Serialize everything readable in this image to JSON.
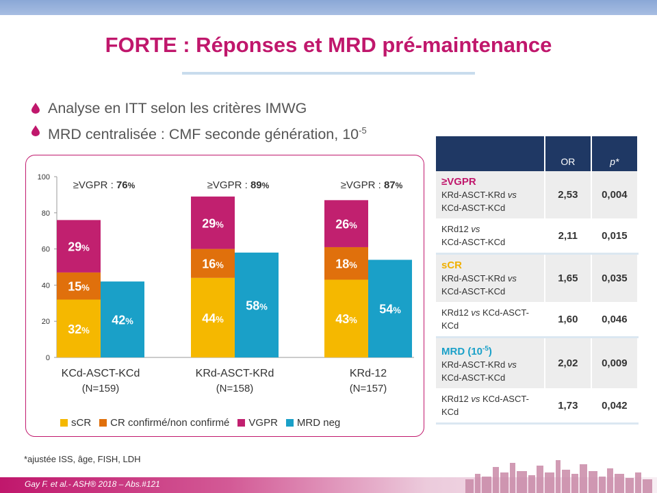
{
  "title": "FORTE : Réponses et MRD pré-maintenance",
  "bullets": [
    {
      "text": "Analyse en ITT selon les critères IMWG",
      "sup": ""
    },
    {
      "text": "MRD centralisée : CMF seconde génération, 10",
      "sup": "-5"
    }
  ],
  "colors": {
    "sCR": "#f5b800",
    "CR": "#e0700c",
    "VGPR": "#c1206f",
    "MRD": "#1aa0c8",
    "title": "#c0176c",
    "table_head": "#1f3864"
  },
  "chart_data": {
    "type": "bar",
    "stacked_and_grouped": true,
    "ylim": [
      0,
      100
    ],
    "yticks": [
      "0",
      "20",
      "40",
      "60",
      "80",
      "100"
    ],
    "groups": [
      {
        "label": "KCd-ASCT-KCd",
        "n": "(N=159)",
        "vgpr_label": "≥VGPR : ",
        "vgpr_value": "76",
        "sCR": 32,
        "CR": 15,
        "VGPR": 29,
        "MRD": 42
      },
      {
        "label": "KRd-ASCT-KRd",
        "n": "(N=158)",
        "vgpr_label": "≥VGPR : ",
        "vgpr_value": "89",
        "sCR": 44,
        "CR": 16,
        "VGPR": 29,
        "MRD": 58
      },
      {
        "label": "KRd-12",
        "n": "(N=157)",
        "vgpr_label": "≥VGPR : ",
        "vgpr_value": "87",
        "sCR": 43,
        "CR": 18,
        "VGPR": 26,
        "MRD": 54
      }
    ],
    "legend": [
      "sCR",
      "CR confirmé/non confirmé",
      "VGPR",
      "MRD neg"
    ]
  },
  "table": {
    "col_or": "OR",
    "col_p": "p*",
    "groups": [
      {
        "head": "≥VGPR",
        "head_sup": "",
        "color": "#c0176c",
        "rows": [
          {
            "pre": "KRd-ASCT-KRd",
            "vs": "vs",
            "post": "KCd-ASCT-KCd",
            "or": "2,53",
            "p": "0,004"
          },
          {
            "pre": "KRd12",
            "vs": "vs",
            "post": "KCd-ASCT-KCd",
            "or": "2,11",
            "p": "0,015"
          }
        ]
      },
      {
        "head": "sCR",
        "head_sup": "",
        "color": "#f0b000",
        "rows": [
          {
            "pre": "KRd-ASCT-KRd",
            "vs": "vs",
            "post": "KCd-ASCT-KCd",
            "or": "1,65",
            "p": "0,035"
          },
          {
            "pre": "KRd12",
            "vs": "vs",
            "post": "KCd-ASCT-KCd",
            "or": "1,60",
            "p": "0,046"
          }
        ]
      },
      {
        "head": "MRD (10",
        "head_sup": "-5",
        "head_end": ")",
        "color": "#1aa0c8",
        "rows": [
          {
            "pre": "KRd-ASCT-KRd",
            "vs": "vs",
            "post": "KCd-ASCT-KCd",
            "or": "2,02",
            "p": "0,009"
          },
          {
            "pre": "KRd12",
            "vs": "vs",
            "post": "KCd-ASCT-KCd",
            "or": "1,73",
            "p": "0,042"
          }
        ]
      }
    ]
  },
  "footnote": "*ajustée ISS, âge, FISH, LDH",
  "source": "Gay F. et al.- ASH® 2018 – Abs.#121"
}
